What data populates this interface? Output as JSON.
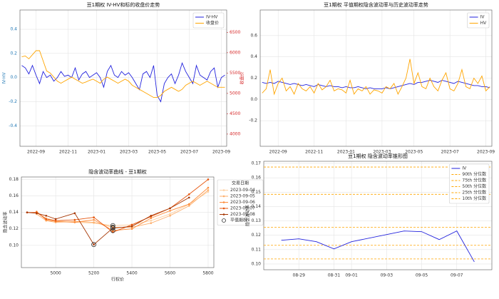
{
  "chart_data": [
    {
      "type": "line",
      "title": "豆1期权 IV-HV和标的收盘价走势",
      "ylabel": "IV-HV",
      "y2label": "收盘价",
      "categories": [
        null,
        null,
        null,
        null,
        "2022-09",
        null,
        null,
        null,
        null,
        null,
        null,
        null,
        null,
        "2022-11",
        null,
        null,
        null,
        null,
        null,
        null,
        null,
        "2023-01",
        null,
        null,
        null,
        null,
        null,
        null,
        null,
        null,
        "2023-03",
        null,
        null,
        null,
        null,
        null,
        null,
        null,
        "2023-05",
        null,
        null,
        null,
        null,
        null,
        null,
        null,
        null,
        "2023-07",
        null,
        null,
        null,
        null,
        null,
        null,
        null,
        null,
        "2023-09",
        null
      ],
      "ylim": [
        -0.57,
        0.56
      ],
      "yticks": [
        -0.4,
        -0.2,
        {
          "value": 0,
          "label": "0.0"
        },
        0.2,
        0.4
      ],
      "ytick_color": "#1f77b4",
      "y2lim": [
        3700,
        7050
      ],
      "y2ticks": [
        4000,
        4500,
        5000,
        5500,
        6000,
        6500
      ],
      "y2tick_color": "#d62728",
      "grid": true,
      "legend": "upper right",
      "series": [
        {
          "name": "IV-HV",
          "color": "#2222dd",
          "values": [
            0.1,
            0.08,
            0.03,
            0.1,
            0.02,
            -0.05,
            0.05,
            0.0,
            0.02,
            -0.03,
            0.0,
            0.05,
            0.01,
            0.02,
            0.0,
            0.08,
            -0.02,
            0.03,
            0.05,
            0.0,
            0.02,
            0.04,
            0.0,
            -0.08,
            0.05,
            0.1,
            0.02,
            0.0,
            0.05,
            0.02,
            0.04,
            0.0,
            -0.05,
            -0.1,
            0.03,
            0.05,
            0.0,
            0.1,
            -0.15,
            -0.2,
            -0.05,
            0.0,
            0.03,
            -0.05,
            0.02,
            0.12,
            0.05,
            0.0,
            -0.05,
            0.1,
            0.02,
            0.0,
            -0.02,
            0.05,
            0.08,
            -0.08,
            0.0,
            0.02
          ]
        },
        {
          "name": "收盘价",
          "color": "#ffa500",
          "axis": "y2",
          "values": [
            5900,
            5920,
            5850,
            5950,
            6050,
            6050,
            5800,
            5550,
            5500,
            5400,
            5300,
            5250,
            5300,
            5350,
            5400,
            5350,
            5300,
            5250,
            5280,
            5320,
            5350,
            5300,
            5250,
            5350,
            5400,
            5350,
            5300,
            5250,
            5300,
            5350,
            5300,
            5200,
            5150,
            5100,
            5050,
            5000,
            4950,
            4900,
            4900,
            4950,
            5050,
            5100,
            5150,
            5100,
            5050,
            5100,
            5200,
            5250,
            5300,
            5250,
            5200,
            5250,
            5300,
            5250,
            5200,
            5150,
            5150,
            5150
          ]
        }
      ]
    },
    {
      "type": "line",
      "title": "豆1期权 平值期权隐含波动率与历史波动率走势",
      "categories": [
        null,
        null,
        null,
        null,
        "2022-09",
        null,
        null,
        null,
        null,
        null,
        null,
        null,
        null,
        "2022-11",
        null,
        null,
        null,
        null,
        null,
        null,
        null,
        "2023-01",
        null,
        null,
        null,
        null,
        null,
        null,
        null,
        null,
        "2023-03",
        null,
        null,
        null,
        null,
        null,
        null,
        null,
        "2023-05",
        null,
        null,
        null,
        null,
        null,
        null,
        null,
        null,
        "2023-07",
        null,
        null,
        null,
        null,
        null,
        null,
        null,
        null,
        "2023-09",
        null
      ],
      "ylim": [
        -0.44,
        0.84
      ],
      "yticks": [
        -0.2,
        {
          "value": 0,
          "label": "0.0"
        },
        0.2,
        0.4,
        0.6
      ],
      "grid": true,
      "legend": "upper right",
      "series": [
        {
          "name": "IV",
          "color": "#2222dd",
          "values": [
            0.16,
            0.15,
            0.16,
            0.15,
            0.17,
            0.16,
            0.15,
            0.14,
            0.15,
            0.14,
            0.13,
            0.14,
            0.13,
            0.12,
            0.14,
            0.13,
            0.12,
            0.13,
            0.12,
            0.12,
            0.11,
            0.12,
            0.11,
            0.11,
            0.12,
            0.11,
            0.1,
            0.11,
            0.1,
            0.1,
            0.1,
            0.11,
            0.1,
            0.11,
            0.12,
            0.13,
            0.14,
            0.15,
            0.14,
            0.16,
            0.16,
            0.17,
            0.18,
            0.17,
            0.16,
            0.18,
            0.17,
            0.16,
            0.15,
            0.17,
            0.16,
            0.15,
            0.14,
            0.13,
            0.13,
            0.12,
            0.12,
            0.11
          ]
        },
        {
          "name": "HV",
          "color": "#ffa500",
          "values": [
            0.06,
            0.1,
            0.28,
            0.05,
            0.15,
            0.2,
            0.08,
            0.12,
            0.05,
            0.15,
            0.1,
            0.08,
            0.12,
            0.06,
            0.15,
            0.09,
            0.12,
            0.18,
            0.08,
            0.1,
            0.09,
            0.06,
            0.18,
            0.05,
            0.1,
            0.08,
            0.12,
            0.05,
            0.09,
            0.08,
            0.06,
            0.12,
            0.1,
            0.15,
            0.05,
            0.12,
            0.2,
            0.38,
            0.15,
            0.25,
            0.12,
            0.1,
            0.2,
            0.12,
            0.08,
            0.18,
            0.25,
            0.1,
            0.08,
            0.15,
            0.28,
            0.12,
            0.1,
            0.2,
            0.15,
            0.22,
            0.08,
            0.12
          ]
        }
      ]
    },
    {
      "type": "line",
      "title": "隐含波动率曲线 - 豆1期权",
      "xlabel": "行权价",
      "ylabel": "隐含波动率",
      "x": [
        4850,
        4900,
        4950,
        5000,
        5100,
        5200,
        5300,
        5400,
        5500,
        5600,
        5700,
        5800
      ],
      "xlim": [
        4820,
        5830
      ],
      "xticks": [
        5000,
        5200,
        5400,
        5600,
        5800
      ],
      "ylim": [
        0.073,
        0.183
      ],
      "yticks": [
        {
          "value": 0.1,
          "label": "0.10"
        },
        0.12,
        0.14,
        0.16,
        0.18
      ],
      "grid": true,
      "markers": true,
      "legend": "right",
      "legend_title": "交易日期",
      "series": [
        {
          "name": "2023-09-04",
          "color": "#fdd0a2",
          "values": [
            null,
            0.14,
            0.133,
            0.13,
            0.128,
            0.127,
            0.124,
            0.125,
            0.13,
            0.138,
            0.15,
            0.165
          ]
        },
        {
          "name": "2023-09-05",
          "color": "#fdae6b",
          "values": [
            null,
            0.138,
            0.13,
            0.128,
            0.129,
            0.128,
            0.122,
            0.122,
            0.127,
            0.136,
            0.148,
            0.167
          ]
        },
        {
          "name": "2023-09-06",
          "color": "#fd8d3c",
          "values": [
            null,
            0.141,
            0.131,
            0.129,
            0.128,
            0.131,
            0.118,
            0.12,
            0.133,
            0.142,
            0.15,
            0.17
          ]
        },
        {
          "name": "2023-09-07",
          "color": "#e6550d",
          "values": [
            0.14,
            0.14,
            0.132,
            0.13,
            0.131,
            0.134,
            0.116,
            0.125,
            0.135,
            0.145,
            0.162,
            0.18
          ]
        },
        {
          "name": "2023-09-08",
          "color": "#a63603",
          "values": [
            0.14,
            0.139,
            0.136,
            0.132,
            0.139,
            0.101,
            0.121,
            0.123,
            0.136,
            0.145,
            0.158,
            null
          ]
        },
        {
          "name": "平值期权",
          "color": "#333333",
          "style": "markers",
          "x": [
            5200,
            5300,
            5300,
            5300,
            5300
          ],
          "values": [
            0.101,
            0.124,
            0.121,
            0.118,
            0.122
          ]
        }
      ]
    },
    {
      "type": "line",
      "title": "豆1期权 隐含波动率锥形图",
      "ylabel": "隐含波动率",
      "x": [
        "08-28",
        "08-29",
        "08-30",
        "08-31",
        "09-01",
        "09-04",
        "09-05",
        "09-06",
        "09-07",
        "09-08"
      ],
      "xlim": [
        "08-27",
        "09-09"
      ],
      "xticks": [
        "08-29",
        "08-31",
        "09-01",
        "09-03",
        "09-05",
        "09-07"
      ],
      "ylim": [
        0.096,
        0.1715
      ],
      "yticks": [
        {
          "value": 0.1,
          "label": "0.10"
        },
        0.11,
        0.12,
        0.13,
        0.14,
        0.15,
        0.16,
        0.17
      ],
      "grid": true,
      "legend": "upper right",
      "series": [
        {
          "name": "IV",
          "color": "#2222dd",
          "values": [
            0.1165,
            0.1175,
            0.1155,
            0.1105,
            0.1155,
            0.123,
            0.1225,
            0.117,
            0.123,
            0.1015
          ]
        }
      ],
      "hlines": [
        {
          "name": "90th 分位数",
          "value": 0.1675,
          "color": "#ffa500"
        },
        {
          "name": "75th 分位数",
          "value": 0.1485,
          "color": "#ffa500"
        },
        {
          "name": "50th 分位数",
          "value": 0.1255,
          "color": "#ffa500"
        },
        {
          "name": "25th 分位数",
          "value": 0.113,
          "color": "#ffa500"
        },
        {
          "name": "10th 分位数",
          "value": 0.1035,
          "color": "#ffa500"
        }
      ]
    }
  ]
}
